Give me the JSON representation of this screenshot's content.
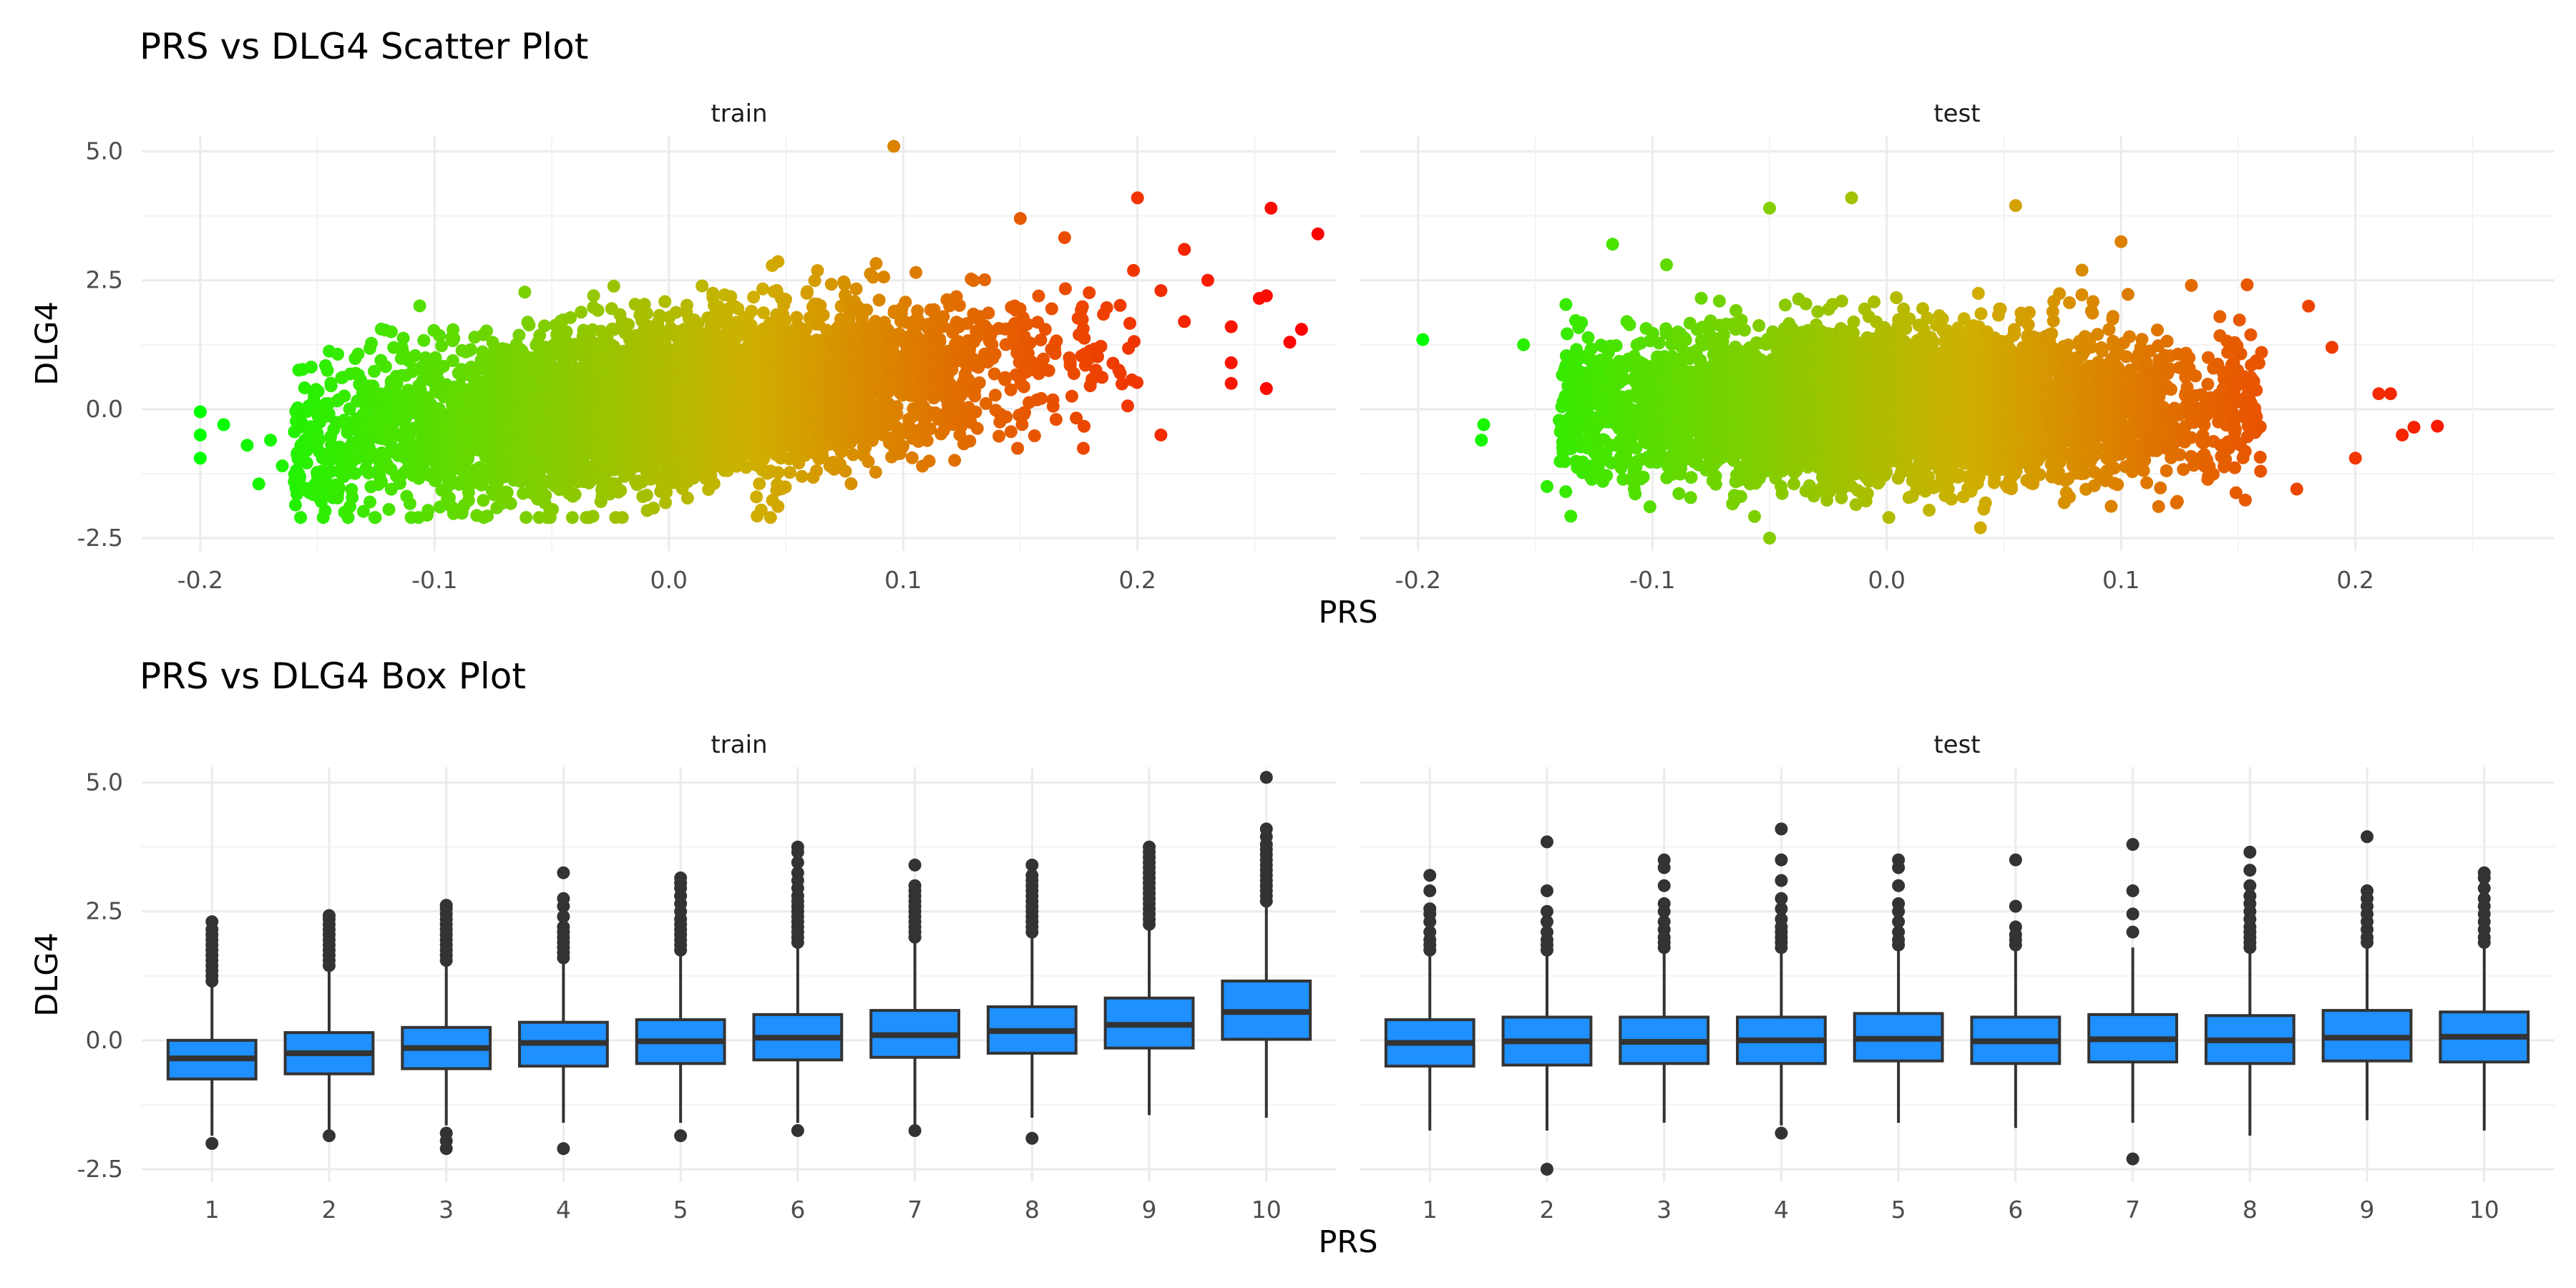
{
  "colors": {
    "low": "#00ff00",
    "mid": "#cfb000",
    "high": "#ff0000",
    "box_fill": "#1e90ff",
    "box_line": "#333333",
    "outlier": "#333333"
  },
  "chart_data": [
    {
      "type": "scatter",
      "title": "PRS vs DLG4 Scatter Plot",
      "xlabel": "PRS",
      "ylabel": "DLG4",
      "xlim": [
        -0.225,
        0.285
      ],
      "ylim": [
        -2.75,
        5.3
      ],
      "x_ticks": [
        -0.2,
        -0.1,
        0.0,
        0.1,
        0.2
      ],
      "x_tick_labels": [
        "-0.2",
        "-0.1",
        "0.0",
        "0.1",
        "0.2"
      ],
      "y_ticks": [
        -2.5,
        0.0,
        2.5,
        5.0
      ],
      "y_tick_labels": [
        "-2.5",
        "0.0",
        "2.5",
        "5.0"
      ],
      "color_scale": {
        "variable": "PRS",
        "low": "#00ff00",
        "mid": "#cfb000",
        "high": "#ff0000",
        "range": [
          -0.2,
          0.27
        ]
      },
      "panels": [
        {
          "name": "train",
          "bulk": {
            "x_mean": 0.0,
            "x_sd": 0.07,
            "x_range": [
              -0.16,
              0.2
            ],
            "y_intercept": 0.15,
            "y_slope": 4.8,
            "y_sd": 0.75
          },
          "points": [
            [
              -0.2,
              -0.05
            ],
            [
              -0.2,
              -0.5
            ],
            [
              -0.2,
              -0.95
            ],
            [
              -0.19,
              -0.3
            ],
            [
              -0.18,
              -0.7
            ],
            [
              -0.175,
              -1.45
            ],
            [
              -0.17,
              -0.6
            ],
            [
              -0.165,
              -1.1
            ],
            [
              0.096,
              5.1
            ],
            [
              0.15,
              3.7
            ],
            [
              0.2,
              4.1
            ],
            [
              0.22,
              3.1
            ],
            [
              0.23,
              2.5
            ],
            [
              0.24,
              1.6
            ],
            [
              0.24,
              0.9
            ],
            [
              0.24,
              0.5
            ],
            [
              0.22,
              1.7
            ],
            [
              0.21,
              2.3
            ],
            [
              0.21,
              -0.5
            ],
            [
              0.255,
              2.2
            ],
            [
              0.252,
              2.15
            ],
            [
              0.257,
              3.9
            ],
            [
              0.265,
              1.3
            ],
            [
              0.27,
              1.55
            ],
            [
              0.277,
              3.4
            ],
            [
              0.255,
              0.4
            ]
          ]
        },
        {
          "name": "test",
          "bulk": {
            "x_mean": 0.0,
            "x_sd": 0.065,
            "x_range": [
              -0.14,
              0.16
            ],
            "y_intercept": 0.05,
            "y_slope": 0.0,
            "y_sd": 0.7
          },
          "points": [
            [
              -0.198,
              1.35
            ],
            [
              -0.172,
              -0.3
            ],
            [
              -0.173,
              -0.6
            ],
            [
              -0.155,
              1.25
            ],
            [
              -0.145,
              -1.5
            ],
            [
              -0.137,
              -1.6
            ],
            [
              -0.117,
              3.2
            ],
            [
              -0.094,
              2.8
            ],
            [
              -0.05,
              3.9
            ],
            [
              -0.05,
              -2.5
            ],
            [
              -0.015,
              4.1
            ],
            [
              0.04,
              -2.3
            ],
            [
              0.055,
              3.95
            ],
            [
              0.1,
              3.25
            ],
            [
              0.13,
              2.4
            ],
            [
              0.18,
              2.0
            ],
            [
              0.19,
              1.2
            ],
            [
              0.2,
              -0.95
            ],
            [
              0.21,
              0.3
            ],
            [
              0.215,
              0.3
            ],
            [
              0.22,
              -0.5
            ],
            [
              0.225,
              -0.35
            ],
            [
              0.235,
              -0.33
            ],
            [
              0.175,
              -1.55
            ]
          ]
        }
      ]
    },
    {
      "type": "box",
      "title": "PRS vs DLG4 Box Plot",
      "xlabel": "PRS",
      "ylabel": "DLG4",
      "categories": [
        "1",
        "2",
        "3",
        "4",
        "5",
        "6",
        "7",
        "8",
        "9",
        "10"
      ],
      "ylim": [
        -2.75,
        5.3
      ],
      "y_ticks": [
        -2.5,
        0.0,
        2.5,
        5.0
      ],
      "y_tick_labels": [
        "-2.5",
        "0.0",
        "2.5",
        "5.0"
      ],
      "panels": [
        {
          "name": "train",
          "boxes": [
            {
              "q1": -0.75,
              "median": -0.35,
              "q3": 0.0,
              "low": -1.85,
              "high": 1.1,
              "outliers_low": [
                -2.0
              ],
              "outliers_high": [
                1.15,
                1.25,
                1.35,
                1.45,
                1.55,
                1.65,
                1.75,
                1.85,
                1.95,
                2.05,
                2.15,
                2.3
              ]
            },
            {
              "q1": -0.65,
              "median": -0.25,
              "q3": 0.15,
              "low": -1.75,
              "high": 1.4,
              "outliers_low": [
                -1.85
              ],
              "outliers_high": [
                1.45,
                1.55,
                1.65,
                1.75,
                1.85,
                1.95,
                2.05,
                2.15,
                2.25,
                2.35,
                2.42
              ]
            },
            {
              "q1": -0.55,
              "median": -0.15,
              "q3": 0.25,
              "low": -1.65,
              "high": 1.5,
              "outliers_low": [
                -1.8,
                -1.95,
                -2.1
              ],
              "outliers_high": [
                1.55,
                1.65,
                1.75,
                1.85,
                1.95,
                2.05,
                2.15,
                2.25,
                2.35,
                2.45,
                2.55,
                2.62
              ]
            },
            {
              "q1": -0.5,
              "median": -0.05,
              "q3": 0.35,
              "low": -1.6,
              "high": 1.55,
              "outliers_low": [
                -2.1
              ],
              "outliers_high": [
                1.6,
                1.7,
                1.8,
                1.9,
                2.0,
                2.1,
                2.2,
                2.4,
                2.6,
                2.75,
                3.25
              ]
            },
            {
              "q1": -0.45,
              "median": -0.02,
              "q3": 0.4,
              "low": -1.6,
              "high": 1.7,
              "outliers_low": [
                -1.85
              ],
              "outliers_high": [
                1.75,
                1.85,
                1.95,
                2.05,
                2.15,
                2.25,
                2.35,
                2.5,
                2.65,
                2.8,
                2.95,
                3.05,
                3.15
              ]
            },
            {
              "q1": -0.38,
              "median": 0.05,
              "q3": 0.5,
              "low": -1.6,
              "high": 1.85,
              "outliers_low": [
                -1.75
              ],
              "outliers_high": [
                1.9,
                2.0,
                2.1,
                2.2,
                2.3,
                2.4,
                2.5,
                2.6,
                2.7,
                2.8,
                2.95,
                3.1,
                3.25,
                3.45,
                3.65,
                3.75
              ]
            },
            {
              "q1": -0.33,
              "median": 0.1,
              "q3": 0.58,
              "low": -1.65,
              "high": 1.95,
              "outliers_low": [
                -1.75
              ],
              "outliers_high": [
                2.0,
                2.1,
                2.2,
                2.3,
                2.4,
                2.5,
                2.6,
                2.7,
                2.8,
                2.9,
                3.0,
                3.4
              ]
            },
            {
              "q1": -0.25,
              "median": 0.18,
              "q3": 0.65,
              "low": -1.5,
              "high": 2.05,
              "outliers_low": [
                -1.9
              ],
              "outliers_high": [
                2.1,
                2.2,
                2.3,
                2.4,
                2.5,
                2.6,
                2.7,
                2.8,
                2.9,
                3.0,
                3.1,
                3.2,
                3.4
              ]
            },
            {
              "q1": -0.15,
              "median": 0.3,
              "q3": 0.82,
              "low": -1.45,
              "high": 2.2,
              "outliers_low": [],
              "outliers_high": [
                2.25,
                2.35,
                2.45,
                2.55,
                2.65,
                2.75,
                2.85,
                2.95,
                3.05,
                3.15,
                3.25,
                3.35,
                3.45,
                3.55,
                3.65,
                3.75
              ]
            },
            {
              "q1": 0.02,
              "median": 0.55,
              "q3": 1.15,
              "low": -1.5,
              "high": 2.65,
              "outliers_low": [],
              "outliers_high": [
                2.7,
                2.8,
                2.9,
                3.0,
                3.1,
                3.2,
                3.3,
                3.4,
                3.5,
                3.6,
                3.7,
                3.8,
                3.95,
                4.1,
                5.1
              ]
            }
          ]
        },
        {
          "name": "test",
          "boxes": [
            {
              "q1": -0.5,
              "median": -0.05,
              "q3": 0.4,
              "low": -1.75,
              "high": 1.7,
              "outliers_low": [],
              "outliers_high": [
                1.75,
                1.85,
                1.95,
                2.1,
                2.3,
                2.45,
                2.55,
                2.9,
                3.2
              ]
            },
            {
              "q1": -0.48,
              "median": -0.02,
              "q3": 0.45,
              "low": -1.75,
              "high": 1.7,
              "outliers_low": [
                -2.5
              ],
              "outliers_high": [
                1.75,
                1.85,
                1.95,
                2.1,
                2.3,
                2.5,
                2.9,
                3.85
              ]
            },
            {
              "q1": -0.45,
              "median": -0.03,
              "q3": 0.45,
              "low": -1.6,
              "high": 1.75,
              "outliers_low": [],
              "outliers_high": [
                1.8,
                1.9,
                2.0,
                2.15,
                2.3,
                2.5,
                2.65,
                3.0,
                3.35,
                3.5
              ]
            },
            {
              "q1": -0.45,
              "median": 0.0,
              "q3": 0.45,
              "low": -1.65,
              "high": 1.75,
              "outliers_low": [
                -1.8
              ],
              "outliers_high": [
                1.8,
                1.9,
                2.0,
                2.1,
                2.2,
                2.35,
                2.55,
                2.75,
                3.1,
                3.5,
                4.1
              ]
            },
            {
              "q1": -0.4,
              "median": 0.03,
              "q3": 0.52,
              "low": -1.6,
              "high": 1.8,
              "outliers_low": [],
              "outliers_high": [
                1.85,
                1.95,
                2.1,
                2.3,
                2.5,
                2.65,
                3.0,
                3.35,
                3.5
              ]
            },
            {
              "q1": -0.45,
              "median": -0.02,
              "q3": 0.45,
              "low": -1.7,
              "high": 1.75,
              "outliers_low": [],
              "outliers_high": [
                1.85,
                1.95,
                2.05,
                2.2,
                2.6,
                3.5
              ]
            },
            {
              "q1": -0.42,
              "median": 0.02,
              "q3": 0.5,
              "low": -1.6,
              "high": 1.8,
              "outliers_low": [
                -2.3
              ],
              "outliers_high": [
                2.1,
                2.45,
                2.9,
                3.8
              ]
            },
            {
              "q1": -0.45,
              "median": 0.0,
              "q3": 0.48,
              "low": -1.85,
              "high": 1.75,
              "outliers_low": [],
              "outliers_high": [
                1.8,
                1.9,
                2.0,
                2.1,
                2.2,
                2.35,
                2.5,
                2.65,
                2.8,
                3.0,
                3.3,
                3.65
              ]
            },
            {
              "q1": -0.4,
              "median": 0.05,
              "q3": 0.58,
              "low": -1.55,
              "high": 1.85,
              "outliers_low": [],
              "outliers_high": [
                1.9,
                2.0,
                2.15,
                2.3,
                2.45,
                2.6,
                2.75,
                2.9,
                3.95
              ]
            },
            {
              "q1": -0.42,
              "median": 0.07,
              "q3": 0.55,
              "low": -1.75,
              "high": 1.85,
              "outliers_low": [],
              "outliers_high": [
                1.9,
                2.0,
                2.15,
                2.3,
                2.45,
                2.6,
                2.75,
                2.95,
                3.15,
                3.25
              ]
            }
          ]
        }
      ]
    }
  ]
}
